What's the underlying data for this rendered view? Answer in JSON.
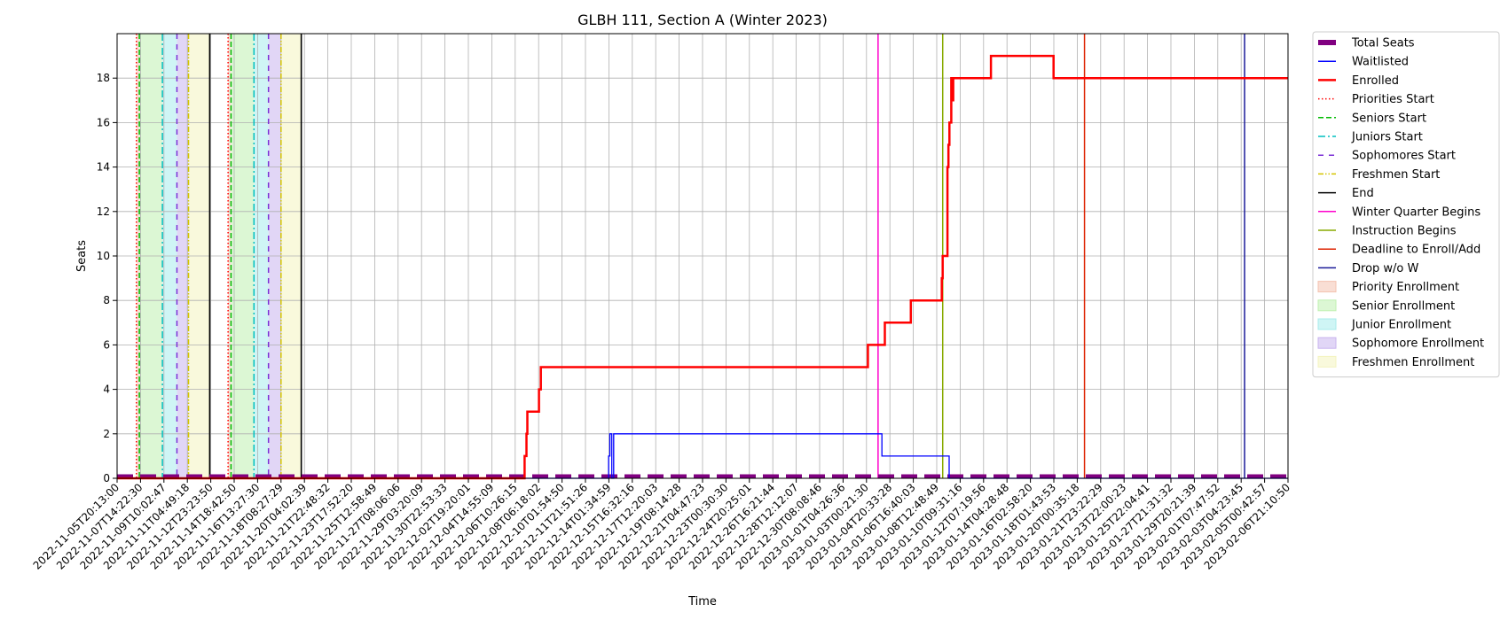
{
  "chart_data": {
    "type": "line",
    "title": "GLBH 111, Section A (Winter 2023)",
    "xlabel": "Time",
    "ylabel": "Seats",
    "ylim": [
      0,
      20
    ],
    "y_ticks": [
      0,
      2,
      4,
      6,
      8,
      10,
      12,
      14,
      16,
      18
    ],
    "grid": true,
    "legend_position": "outside right",
    "x_tick_labels": [
      "2022-11-05T20:13:00",
      "2022-11-07T14:22:30",
      "2022-11-09T10:02:47",
      "2022-11-11T04:49:18",
      "2022-11-12T23:23:50",
      "2022-11-14T18:42:50",
      "2022-11-16T13:27:30",
      "2022-11-18T08:27:29",
      "2022-11-20T04:02:39",
      "2022-11-21T22:48:32",
      "2022-11-23T17:52:20",
      "2022-11-25T12:58:49",
      "2022-11-27T08:06:06",
      "2022-11-29T03:20:09",
      "2022-11-30T22:53:33",
      "2022-12-02T19:20:01",
      "2022-12-04T14:55:09",
      "2022-12-06T10:26:15",
      "2022-12-08T06:18:02",
      "2022-12-10T01:54:50",
      "2022-12-11T21:51:26",
      "2022-12-14T01:34:59",
      "2022-12-15T16:32:16",
      "2022-12-17T12:20:03",
      "2022-12-19T08:14:28",
      "2022-12-21T04:47:23",
      "2022-12-23T00:30:30",
      "2022-12-24T20:25:01",
      "2022-12-26T16:21:44",
      "2022-12-28T12:12:07",
      "2022-12-30T08:08:46",
      "2023-01-01T04:26:36",
      "2023-01-03T00:21:30",
      "2023-01-04T20:33:28",
      "2023-01-06T16:40:03",
      "2023-01-08T12:48:49",
      "2023-01-10T09:31:16",
      "2023-01-12T07:19:56",
      "2023-01-14T04:28:48",
      "2023-01-16T02:58:20",
      "2023-01-18T01:43:53",
      "2023-01-20T00:35:18",
      "2023-01-21T23:22:29",
      "2023-01-23T22:00:23",
      "2023-01-25T22:04:41",
      "2023-01-27T21:31:32",
      "2023-01-29T20:21:39",
      "2023-02-01T07:47:52",
      "2023-02-03T04:23:45",
      "2023-02-05T00:42:57",
      "2023-02-06T21:10:50"
    ],
    "series": [
      {
        "name": "Total Seats",
        "color": "#800080",
        "style": "dashed-thick",
        "points": [
          [
            0,
            0.1
          ],
          [
            1,
            0.1
          ]
        ]
      },
      {
        "name": "Waitlisted",
        "color": "#0000ff",
        "style": "solid",
        "points": [
          [
            0.0,
            0
          ],
          [
            0.4198,
            0
          ],
          [
            0.4198,
            1
          ],
          [
            0.4208,
            1
          ],
          [
            0.4208,
            2
          ],
          [
            0.4225,
            2
          ],
          [
            0.4225,
            0
          ],
          [
            0.4241,
            0
          ],
          [
            0.4241,
            2
          ],
          [
            0.6532,
            2
          ],
          [
            0.6532,
            1
          ],
          [
            0.7106,
            1
          ],
          [
            0.7106,
            0
          ],
          [
            1.0,
            0
          ]
        ]
      },
      {
        "name": "Enrolled",
        "color": "#ff0000",
        "style": "solid-thick",
        "points": [
          [
            0.0,
            0
          ],
          [
            0.348,
            0
          ],
          [
            0.348,
            1
          ],
          [
            0.3496,
            1
          ],
          [
            0.3496,
            2
          ],
          [
            0.3504,
            2
          ],
          [
            0.3504,
            3
          ],
          [
            0.3603,
            3
          ],
          [
            0.3603,
            4
          ],
          [
            0.3619,
            4
          ],
          [
            0.3619,
            5
          ],
          [
            0.6412,
            5
          ],
          [
            0.6412,
            6
          ],
          [
            0.6557,
            6
          ],
          [
            0.6557,
            7
          ],
          [
            0.6779,
            7
          ],
          [
            0.6779,
            8
          ],
          [
            0.7043,
            8
          ],
          [
            0.7043,
            9
          ],
          [
            0.7051,
            9
          ],
          [
            0.7051,
            10
          ],
          [
            0.7092,
            10
          ],
          [
            0.7092,
            14
          ],
          [
            0.71,
            14
          ],
          [
            0.71,
            15
          ],
          [
            0.7108,
            15
          ],
          [
            0.7108,
            16
          ],
          [
            0.7124,
            16
          ],
          [
            0.7124,
            18
          ],
          [
            0.7133,
            18
          ],
          [
            0.7133,
            17
          ],
          [
            0.7141,
            17
          ],
          [
            0.7141,
            18
          ],
          [
            0.7463,
            18
          ],
          [
            0.7463,
            19
          ],
          [
            0.7998,
            19
          ],
          [
            0.7998,
            18
          ],
          [
            1.0,
            18
          ]
        ]
      }
    ],
    "markers": [
      {
        "name": "Priorities Start",
        "color": "#ff0000",
        "style": "dotted",
        "x": [
          0.0165,
          0.0948
        ]
      },
      {
        "name": "Seniors Start",
        "color": "#00bb00",
        "style": "dashed",
        "x": [
          0.019,
          0.0973
        ]
      },
      {
        "name": "Juniors Start",
        "color": "#00bfbf",
        "style": "dashdot",
        "x": [
          0.0387,
          0.1169
        ]
      },
      {
        "name": "Sophomores Start",
        "color": "#7b2fd6",
        "style": "loose-dashed",
        "x": [
          0.0511,
          0.1293
        ]
      },
      {
        "name": "Freshmen Start",
        "color": "#d4c400",
        "style": "dashdotdot",
        "x": [
          0.061,
          0.14
        ]
      },
      {
        "name": "End",
        "color": "#000000",
        "style": "solid",
        "x": [
          0.0791,
          0.1573
        ]
      },
      {
        "name": "Winter Quarter Begins",
        "color": "#ff00cc",
        "style": "solid",
        "x": [
          0.6499
        ]
      },
      {
        "name": "Instruction Begins",
        "color": "#88aa00",
        "style": "solid",
        "x": [
          0.7051
        ]
      },
      {
        "name": "Deadline to Enroll/Add",
        "color": "#dd2200",
        "style": "solid",
        "x": [
          0.8262
        ]
      },
      {
        "name": "Drop w/o W",
        "color": "#1a1a99",
        "style": "solid",
        "x": [
          0.9629
        ]
      }
    ],
    "spans": [
      {
        "name": "Priority Enrollment",
        "color": "#f4c3b0",
        "ranges": [
          [
            0.0165,
            0.019
          ],
          [
            0.0948,
            0.0973
          ]
        ]
      },
      {
        "name": "Senior Enrollment",
        "color": "#bff0b0",
        "ranges": [
          [
            0.019,
            0.0387
          ],
          [
            0.0973,
            0.1169
          ]
        ]
      },
      {
        "name": "Junior Enrollment",
        "color": "#a8ecec",
        "ranges": [
          [
            0.0387,
            0.0511
          ],
          [
            0.1169,
            0.1293
          ]
        ]
      },
      {
        "name": "Sophomore Enrollment",
        "color": "#c9b4ef",
        "ranges": [
          [
            0.0511,
            0.061
          ],
          [
            0.1293,
            0.14
          ]
        ]
      },
      {
        "name": "Freshmen Enrollment",
        "color": "#f4f4c0",
        "ranges": [
          [
            0.061,
            0.0791
          ],
          [
            0.14,
            0.1573
          ]
        ]
      }
    ],
    "legend": [
      {
        "label": "Total Seats",
        "kind": "line",
        "color": "#800080",
        "style": "thick"
      },
      {
        "label": "Waitlisted",
        "kind": "line",
        "color": "#0000ff",
        "style": "solid"
      },
      {
        "label": "Enrolled",
        "kind": "line",
        "color": "#ff0000",
        "style": "solid-thick"
      },
      {
        "label": "Priorities Start",
        "kind": "line",
        "color": "#ff0000",
        "style": "dotted"
      },
      {
        "label": "Seniors Start",
        "kind": "line",
        "color": "#00bb00",
        "style": "dashed"
      },
      {
        "label": "Juniors Start",
        "kind": "line",
        "color": "#00bfbf",
        "style": "dashdot"
      },
      {
        "label": "Sophomores Start",
        "kind": "line",
        "color": "#7b2fd6",
        "style": "loose-dashed"
      },
      {
        "label": "Freshmen Start",
        "kind": "line",
        "color": "#d4c400",
        "style": "dashdotdot"
      },
      {
        "label": "End",
        "kind": "line",
        "color": "#000000",
        "style": "solid"
      },
      {
        "label": "Winter Quarter Begins",
        "kind": "line",
        "color": "#ff00cc",
        "style": "solid"
      },
      {
        "label": "Instruction Begins",
        "kind": "line",
        "color": "#88aa00",
        "style": "solid"
      },
      {
        "label": "Deadline to Enroll/Add",
        "kind": "line",
        "color": "#dd2200",
        "style": "solid"
      },
      {
        "label": "Drop w/o W",
        "kind": "line",
        "color": "#1a1a99",
        "style": "solid"
      },
      {
        "label": "Priority Enrollment",
        "kind": "patch",
        "color": "#f4c3b0"
      },
      {
        "label": "Senior Enrollment",
        "kind": "patch",
        "color": "#bff0b0"
      },
      {
        "label": "Junior Enrollment",
        "kind": "patch",
        "color": "#a8ecec"
      },
      {
        "label": "Sophomore Enrollment",
        "kind": "patch",
        "color": "#c9b4ef"
      },
      {
        "label": "Freshmen Enrollment",
        "kind": "patch",
        "color": "#f4f4c0"
      }
    ]
  }
}
